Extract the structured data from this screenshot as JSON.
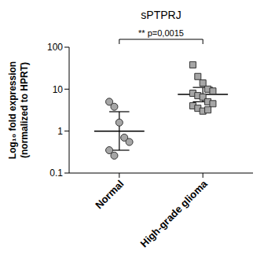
{
  "chart_data": {
    "type": "scatter",
    "title": "sPTPRJ",
    "y_label": [
      "Log₁₀ fold expression",
      "(normalized to HPRT)"
    ],
    "categories": [
      "Normal",
      "High-grade glioma"
    ],
    "log": "y",
    "ylim": [
      0.1,
      100
    ],
    "yticks": [
      0.1,
      1,
      10,
      100
    ],
    "annotation": "** p=0,0015",
    "groups": [
      {
        "category": "Normal",
        "marker": "circle",
        "color": "#a6a6a6",
        "values": [
          5.0,
          3.8,
          1.6,
          0.7,
          0.55,
          0.35,
          0.26
        ],
        "mean": 1.0,
        "error_low": 0.35,
        "error_high": 2.9
      },
      {
        "category": "High-grade glioma",
        "marker": "square",
        "color": "#a6a6a6",
        "values": [
          38,
          20,
          14,
          10,
          9,
          8,
          7,
          6.5,
          5,
          4.5,
          4,
          3.5,
          3,
          3.2
        ],
        "mean": 7.5,
        "error_low": 5.0,
        "error_high": 11.0
      }
    ]
  }
}
